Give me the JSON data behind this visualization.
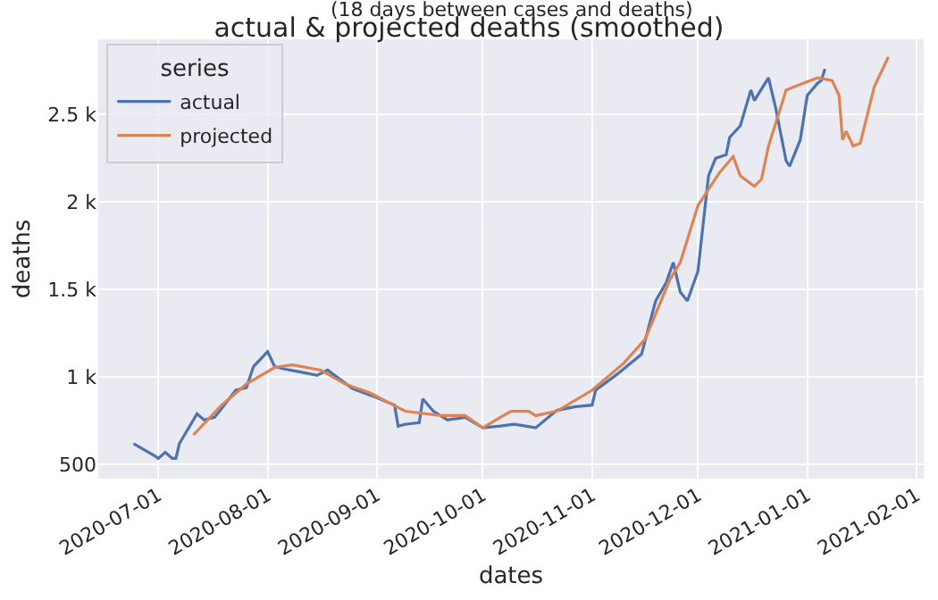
{
  "chart_data": {
    "type": "line",
    "title": "actual & projected deaths (smoothed)",
    "subtitle": "(18 days between cases and deaths)",
    "xlabel": "dates",
    "ylabel": "deaths",
    "legend_title": "series",
    "legend": "top left",
    "grid": true,
    "xlim": [
      "2020-06-14",
      "2021-02-03"
    ],
    "xticks": [
      "2020-07-01",
      "2020-08-01",
      "2020-09-01",
      "2020-10-01",
      "2020-11-01",
      "2020-12-01",
      "2021-01-01",
      "2021-02-01"
    ],
    "ylim": [
      420,
      2930
    ],
    "yticks": [
      {
        "value": 500,
        "label": "500"
      },
      {
        "value": 1000,
        "label": "1 k"
      },
      {
        "value": 1500,
        "label": "1.5 k"
      },
      {
        "value": 2000,
        "label": "2 k"
      },
      {
        "value": 2500,
        "label": "2.5 k"
      }
    ],
    "series": [
      {
        "name": "actual",
        "color": "#4c72b0",
        "x": [
          "2020-06-24",
          "2020-06-30",
          "2020-07-01",
          "2020-07-03",
          "2020-07-05",
          "2020-07-06",
          "2020-07-07",
          "2020-07-12",
          "2020-07-14",
          "2020-07-17",
          "2020-07-23",
          "2020-07-26",
          "2020-07-28",
          "2020-08-01",
          "2020-08-03",
          "2020-08-06",
          "2020-08-10",
          "2020-08-15",
          "2020-08-18",
          "2020-08-25",
          "2020-08-31",
          "2020-09-06",
          "2020-09-07",
          "2020-09-09",
          "2020-09-13",
          "2020-09-14",
          "2020-09-17",
          "2020-09-21",
          "2020-09-26",
          "2020-10-01",
          "2020-10-06",
          "2020-10-10",
          "2020-10-16",
          "2020-10-22",
          "2020-10-27",
          "2020-11-01",
          "2020-11-02",
          "2020-11-08",
          "2020-11-15",
          "2020-11-19",
          "2020-11-22",
          "2020-11-24",
          "2020-11-26",
          "2020-11-28",
          "2020-12-01",
          "2020-12-04",
          "2020-12-06",
          "2020-12-09",
          "2020-12-10",
          "2020-12-13",
          "2020-12-16",
          "2020-12-17",
          "2020-12-21",
          "2020-12-23",
          "2020-12-26",
          "2020-12-27",
          "2020-12-30",
          "2021-01-01",
          "2021-01-04",
          "2021-01-05",
          "2021-01-06"
        ],
        "values": [
          620,
          550,
          535,
          570,
          535,
          535,
          620,
          790,
          755,
          770,
          925,
          940,
          1060,
          1145,
          1060,
          1045,
          1030,
          1010,
          1040,
          935,
          890,
          840,
          720,
          730,
          740,
          875,
          805,
          755,
          770,
          710,
          720,
          730,
          710,
          810,
          830,
          840,
          925,
          1015,
          1130,
          1435,
          1540,
          1655,
          1485,
          1435,
          1605,
          2150,
          2250,
          2270,
          2370,
          2435,
          2640,
          2580,
          2710,
          2540,
          2235,
          2205,
          2355,
          2610,
          2680,
          2695,
          2760
        ]
      },
      {
        "name": "projected",
        "color": "#dd8452",
        "x": [
          "2020-07-11",
          "2020-07-19",
          "2020-07-26",
          "2020-08-03",
          "2020-08-08",
          "2020-08-16",
          "2020-08-23",
          "2020-08-30",
          "2020-09-09",
          "2020-09-19",
          "2020-09-26",
          "2020-10-01",
          "2020-10-06",
          "2020-10-09",
          "2020-10-14",
          "2020-10-16",
          "2020-10-22",
          "2020-11-01",
          "2020-11-10",
          "2020-11-16",
          "2020-11-23",
          "2020-11-26",
          "2020-12-01",
          "2020-12-07",
          "2020-12-11",
          "2020-12-13",
          "2020-12-17",
          "2020-12-19",
          "2020-12-21",
          "2020-12-26",
          "2020-12-31",
          "2021-01-04",
          "2021-01-08",
          "2021-01-10",
          "2021-01-11",
          "2021-01-12",
          "2021-01-14",
          "2021-01-16",
          "2021-01-20",
          "2021-01-22",
          "2021-01-24"
        ],
        "values": [
          670,
          840,
          960,
          1055,
          1070,
          1040,
          960,
          910,
          805,
          780,
          780,
          710,
          770,
          805,
          805,
          780,
          805,
          925,
          1080,
          1215,
          1555,
          1655,
          1980,
          2165,
          2260,
          2150,
          2090,
          2130,
          2320,
          2640,
          2680,
          2710,
          2695,
          2610,
          2355,
          2405,
          2320,
          2335,
          2660,
          2745,
          2830
        ]
      }
    ]
  }
}
